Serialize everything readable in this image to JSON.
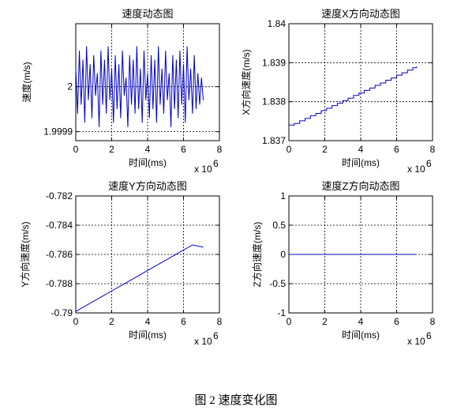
{
  "figure": {
    "caption": "图 2  速度变化图"
  },
  "chart_data": [
    {
      "type": "line",
      "title": "速度动态图",
      "xlabel": "时间(ms)",
      "ylabel": "速度(m/s)",
      "x_multiplier_label": "x 10",
      "x_multiplier_exp": "6",
      "xlim": [
        0,
        8
      ],
      "ylim": [
        1.99988,
        2.00014
      ],
      "xticks": [
        0,
        2,
        4,
        6,
        8
      ],
      "xtick_labels": [
        "0",
        "2",
        "4",
        "6",
        "8"
      ],
      "yticks": [
        1.9999,
        2
      ],
      "ytick_labels": [
        "1.9999",
        "2"
      ],
      "grid": true,
      "color": "#0000cc",
      "series": [
        {
          "x": [
            0.0,
            0.1,
            0.2,
            0.3,
            0.4,
            0.5,
            0.6,
            0.7,
            0.8,
            0.9,
            1.0,
            1.1,
            1.2,
            1.3,
            1.4,
            1.5,
            1.6,
            1.7,
            1.8,
            1.9,
            2.0,
            2.1,
            2.2,
            2.3,
            2.4,
            2.5,
            2.6,
            2.7,
            2.8,
            2.9,
            3.0,
            3.1,
            3.2,
            3.3,
            3.4,
            3.5,
            3.6,
            3.7,
            3.8,
            3.9,
            4.0,
            4.1,
            4.2,
            4.3,
            4.4,
            4.5,
            4.6,
            4.7,
            4.8,
            4.9,
            5.0,
            5.1,
            5.2,
            5.3,
            5.4,
            5.5,
            5.6,
            5.7,
            5.8,
            5.9,
            6.0,
            6.1,
            6.2,
            6.3,
            6.4,
            6.5,
            6.6,
            6.7,
            6.8,
            6.9,
            7.0,
            7.1
          ],
          "y": [
            2.00004,
            1.99994,
            2.00008,
            1.99996,
            2.00006,
            1.99992,
            2.00009,
            1.99997,
            2.00005,
            1.99993,
            2.00007,
            1.99998,
            2.00003,
            1.99991,
            2.00008,
            1.99996,
            2.00006,
            1.99994,
            2.00009,
            1.99997,
            2.00004,
            1.99992,
            2.00007,
            1.99995,
            2.00005,
            1.99993,
            2.00008,
            1.99998,
            2.00002,
            1.99991,
            2.00007,
            1.99996,
            2.00006,
            1.99994,
            2.00009,
            1.99995,
            2.00004,
            1.99992,
            2.00008,
            1.99997,
            2.00003,
            1.99993,
            2.00007,
            1.99995,
            2.00006,
            1.99992,
            2.00009,
            1.99996,
            2.00004,
            1.99994,
            2.00008,
            1.99997,
            2.00003,
            1.99991,
            2.00007,
            1.99995,
            2.00006,
            1.99993,
            2.00008,
            1.99996,
            2.00005,
            1.99992,
            2.00009,
            1.99997,
            2.00004,
            1.99994,
            2.00007,
            1.99995,
            2.00003,
            1.99996,
            2.00002,
            1.99997
          ]
        }
      ]
    },
    {
      "type": "line",
      "title": "速度X方向动态图",
      "xlabel": "时间(ms)",
      "ylabel": "X方向速度(m/s)",
      "x_multiplier_label": "x 10",
      "x_multiplier_exp": "6",
      "xlim": [
        0,
        8
      ],
      "ylim": [
        1.837,
        1.84
      ],
      "xticks": [
        0,
        2,
        4,
        6,
        8
      ],
      "xtick_labels": [
        "0",
        "2",
        "4",
        "6",
        "8"
      ],
      "yticks": [
        1.837,
        1.838,
        1.839,
        1.84
      ],
      "ytick_labels": [
        "1.837",
        "1.838",
        "1.839",
        "1.84"
      ],
      "grid": true,
      "color": "#0000cc",
      "series": [
        {
          "x": [
            0.0,
            0.3,
            0.6,
            0.9,
            1.2,
            1.5,
            1.8,
            2.1,
            2.4,
            2.7,
            3.0,
            3.3,
            3.6,
            3.9,
            4.2,
            4.5,
            4.8,
            5.1,
            5.4,
            5.7,
            6.0,
            6.3,
            6.6,
            6.9,
            7.1
          ],
          "y": [
            1.8374,
            1.83744,
            1.83751,
            1.83757,
            1.83764,
            1.8377,
            1.83777,
            1.83783,
            1.8379,
            1.83796,
            1.83803,
            1.83809,
            1.83816,
            1.83822,
            1.83829,
            1.83835,
            1.83842,
            1.83848,
            1.83855,
            1.83861,
            1.83868,
            1.83874,
            1.83881,
            1.83887,
            1.8389
          ],
          "stepped": true
        }
      ]
    },
    {
      "type": "line",
      "title": "速度Y方向动态图",
      "xlabel": "时间(ms)",
      "ylabel": "Y方向速度(m/s)",
      "x_multiplier_label": "x 10",
      "x_multiplier_exp": "6",
      "xlim": [
        0,
        8
      ],
      "ylim": [
        -0.79,
        -0.782
      ],
      "xticks": [
        0,
        2,
        4,
        6,
        8
      ],
      "xtick_labels": [
        "0",
        "2",
        "4",
        "6",
        "8"
      ],
      "yticks": [
        -0.79,
        -0.788,
        -0.786,
        -0.784,
        -0.782
      ],
      "ytick_labels": [
        "-0.79",
        "-0.788",
        "-0.786",
        "-0.784",
        "-0.782"
      ],
      "grid": true,
      "color": "#0000cc",
      "series": [
        {
          "x": [
            0.0,
            0.5,
            1.0,
            1.5,
            2.0,
            2.5,
            3.0,
            3.5,
            4.0,
            4.5,
            5.0,
            5.5,
            6.0,
            6.5,
            7.1
          ],
          "y": [
            -0.7899,
            -0.78955,
            -0.7892,
            -0.78885,
            -0.7885,
            -0.78815,
            -0.7878,
            -0.78745,
            -0.7871,
            -0.78675,
            -0.7864,
            -0.78605,
            -0.7857,
            -0.78535,
            -0.7855
          ]
        }
      ]
    },
    {
      "type": "line",
      "title": "速度Z方向动态图",
      "xlabel": "时间(ms)",
      "ylabel": "Z方向速度(m/s)",
      "x_multiplier_label": "x 10",
      "x_multiplier_exp": "6",
      "xlim": [
        0,
        8
      ],
      "ylim": [
        -1,
        1
      ],
      "xticks": [
        0,
        2,
        4,
        6,
        8
      ],
      "xtick_labels": [
        "0",
        "2",
        "4",
        "6",
        "8"
      ],
      "yticks": [
        -1,
        -0.5,
        0,
        0.5,
        1
      ],
      "ytick_labels": [
        "-1",
        "-0.5",
        "0",
        "0.5",
        "1"
      ],
      "grid": true,
      "color": "#0000cc",
      "series": [
        {
          "x": [
            0.0,
            7.1
          ],
          "y": [
            0,
            0
          ]
        }
      ]
    }
  ]
}
